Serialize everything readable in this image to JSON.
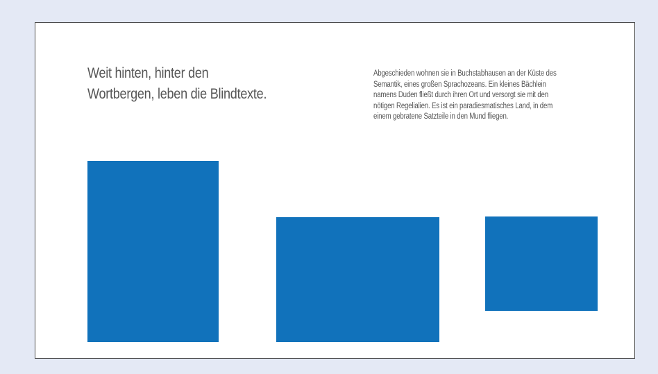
{
  "content": {
    "heading_line_1": "Weit hinten, hinter den",
    "heading_line_2": "Wortbergen, leben die Blindtexte.",
    "body_lines": [
      "Abgeschieden wohnen sie in Buchstabhausen an der Küste des",
      "Semantik, eines großen Sprachozeans. Ein kleines Bächlein",
      "namens Duden fließt durch ihren Ort und versorgt sie mit den",
      "nötigen Regelialien. Es ist ein paradiesmatisches Land, in dem",
      "einem gebratene Satzteile in den Mund fliegen."
    ]
  },
  "colors": {
    "background": "#e4e9f5",
    "panel": "#ffffff",
    "panel_border": "#4a4a4a",
    "text": "#555555",
    "image_placeholder": "#1172bb"
  },
  "placeholders": [
    "image-placeholder",
    "image-placeholder",
    "image-placeholder"
  ]
}
